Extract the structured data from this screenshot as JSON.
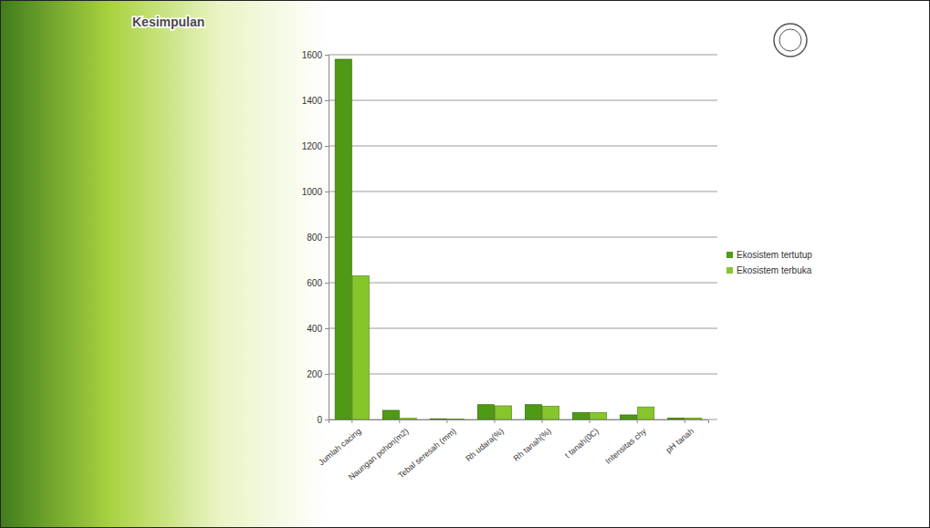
{
  "chart_data": {
    "type": "bar",
    "title": "Kesimpulan",
    "categories": [
      "Jumlah cacing",
      "Naungan pohon(m2)",
      "Tebal seresah (mm)",
      "Rh udara(%)",
      "Rh tanah(%)",
      "t tanah(0C)",
      "Intensitas chy",
      "pH tanah"
    ],
    "series": [
      {
        "name": "Ekosistem tertutup",
        "color": "#4f9a14",
        "values": [
          1580,
          40,
          3,
          65,
          65,
          30,
          20,
          6
        ]
      },
      {
        "name": "Ekosistem terbuka",
        "color": "#86c62a",
        "values": [
          630,
          5,
          2,
          60,
          58,
          30,
          55,
          6
        ]
      }
    ],
    "ylim": [
      0,
      1600
    ],
    "yticks": [
      0,
      200,
      400,
      600,
      800,
      1000,
      1200,
      1400,
      1600
    ],
    "grid": true,
    "legend": "right"
  }
}
